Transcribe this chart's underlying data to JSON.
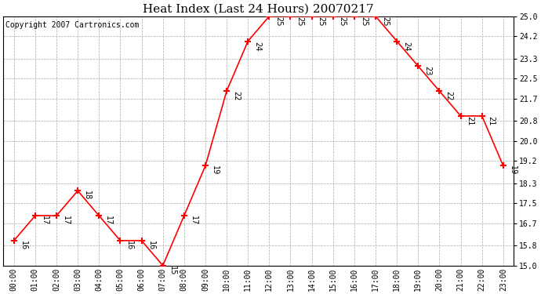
{
  "title": "Heat Index (Last 24 Hours) 20070217",
  "copyright": "Copyright 2007 Cartronics.com",
  "hours": [
    "00:00",
    "01:00",
    "02:00",
    "03:00",
    "04:00",
    "05:00",
    "06:00",
    "07:00",
    "08:00",
    "09:00",
    "10:00",
    "11:00",
    "12:00",
    "13:00",
    "14:00",
    "15:00",
    "16:00",
    "17:00",
    "18:00",
    "19:00",
    "20:00",
    "21:00",
    "22:00",
    "23:00"
  ],
  "values": [
    16,
    17,
    17,
    18,
    17,
    16,
    16,
    15,
    17,
    19,
    22,
    24,
    25,
    25,
    25,
    25,
    25,
    25,
    24,
    23,
    22,
    21,
    21,
    19
  ],
  "ylim_min": 15.0,
  "ylim_max": 25.0,
  "yticks": [
    15.0,
    15.8,
    16.7,
    17.5,
    18.3,
    19.2,
    20.0,
    20.8,
    21.7,
    22.5,
    23.3,
    24.2,
    25.0
  ],
  "line_color": "red",
  "marker": "+",
  "marker_size": 6,
  "marker_color": "red",
  "grid_color": "#aaaaaa",
  "bg_color": "#ffffff",
  "title_fontsize": 11,
  "label_fontsize": 7,
  "annot_fontsize": 7,
  "copyright_fontsize": 7
}
